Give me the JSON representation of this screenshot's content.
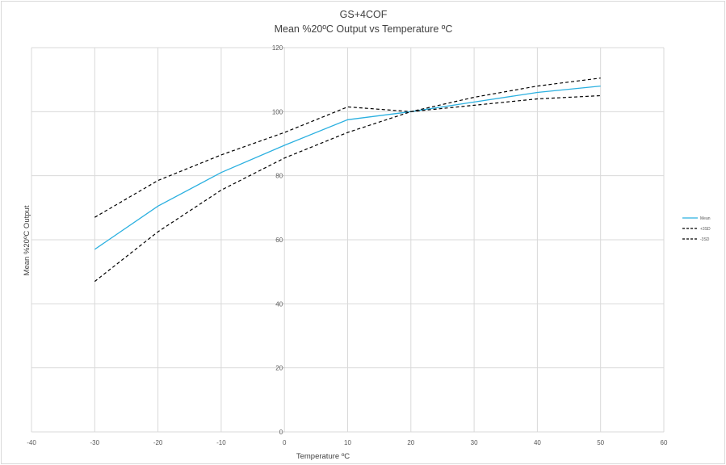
{
  "chart_data": {
    "type": "line",
    "title": "GS+4COF",
    "subtitle": "Mean %20ºC Output vs Temperature ºC",
    "xlabel": "Temperature ºC",
    "ylabel": "Mean %20ºC Output",
    "xlim": [
      -40,
      60
    ],
    "ylim": [
      0,
      120
    ],
    "xticks": [
      -40,
      -30,
      -20,
      -10,
      0,
      10,
      20,
      30,
      40,
      50,
      60
    ],
    "yticks": [
      0,
      20,
      40,
      60,
      80,
      100,
      120
    ],
    "grid": true,
    "legend_position": "right",
    "x": [
      -30,
      -20,
      -10,
      0,
      10,
      20,
      30,
      40,
      50
    ],
    "series": [
      {
        "name": "Mean",
        "color": "#2bb0e0",
        "dash": "solid",
        "values": [
          57,
          70.5,
          81,
          89.5,
          97.5,
          100,
          103,
          106,
          108
        ]
      },
      {
        "name": "+3SD",
        "color": "#000000",
        "dash": "dashed",
        "values": [
          67,
          78.5,
          86.5,
          93.5,
          101.5,
          100,
          104.5,
          108,
          110.5
        ]
      },
      {
        "name": "-3SD",
        "color": "#000000",
        "dash": "dashed",
        "values": [
          47,
          62.5,
          75.5,
          85.5,
          93.5,
          100,
          102,
          104,
          105
        ]
      }
    ]
  }
}
